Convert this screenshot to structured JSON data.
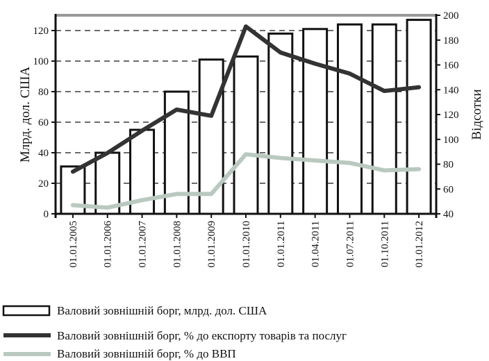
{
  "chart_data": {
    "type": "bar",
    "categories": [
      "01.01.2005",
      "01.01.2006",
      "01.01.2007",
      "01.01.2008",
      "01.01.2009",
      "01.01.2010",
      "01.01.2011",
      "01.04.2011",
      "01.07.2011",
      "01.10.2011",
      "01.01.2012"
    ],
    "y_left": {
      "label": "Млрд. дол. США",
      "lim": [
        0,
        130
      ],
      "ticks": [
        0,
        20,
        40,
        60,
        80,
        100,
        120
      ]
    },
    "y_right": {
      "label": "Відсотки",
      "lim": [
        40,
        200
      ],
      "ticks": [
        40,
        60,
        80,
        100,
        120,
        140,
        160,
        180,
        200
      ]
    },
    "grid": "dashed horizontal at left-axis ticks",
    "legend_position": "bottom",
    "series": [
      {
        "name": "Валовий зовнішній борг, млрд. дол. США",
        "kind": "bar",
        "axis": "left",
        "color": "#ffffff",
        "stroke": "#111111",
        "values": [
          31,
          40,
          55,
          80,
          101,
          103,
          118,
          121,
          124,
          124,
          127
        ]
      },
      {
        "name": "Валовий зовнішній борг, % до експорту товарів та послуг",
        "kind": "line",
        "axis": "right",
        "color": "#333333",
        "values": [
          74,
          89,
          107,
          124,
          119,
          191,
          170,
          161,
          153,
          139,
          142
        ]
      },
      {
        "name": "Валовий зовнішній борг, % до ВВП",
        "kind": "line",
        "axis": "right",
        "color": "#b9c9bf",
        "values": [
          47,
          45,
          51,
          56,
          56,
          88,
          85,
          83,
          81,
          75,
          76
        ]
      }
    ]
  }
}
